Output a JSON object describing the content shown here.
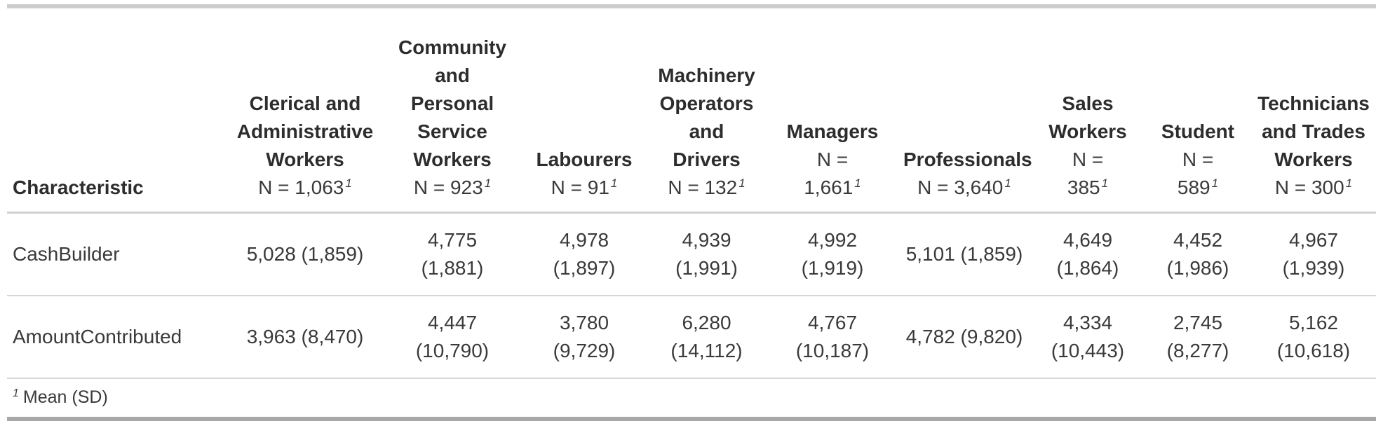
{
  "table": {
    "header": {
      "stub_label": "Characteristic",
      "columns": [
        {
          "label": "Clerical and\nAdministrative\nWorkers",
          "n": "N = 1,063",
          "footnote_mark": "1"
        },
        {
          "label": "Community\nand\nPersonal\nService\nWorkers",
          "n": "N = 923",
          "footnote_mark": "1"
        },
        {
          "label": "Labourers",
          "n": "N = 91",
          "footnote_mark": "1"
        },
        {
          "label": "Machinery\nOperators\nand\nDrivers",
          "n": "N = 132",
          "footnote_mark": "1"
        },
        {
          "label": "Managers",
          "n": "N =\n1,661",
          "footnote_mark": "1"
        },
        {
          "label": "Professionals",
          "n": "N = 3,640",
          "footnote_mark": "1"
        },
        {
          "label": "Sales\nWorkers",
          "n": "N =\n385",
          "footnote_mark": "1"
        },
        {
          "label": "Student",
          "n": "N =\n589",
          "footnote_mark": "1"
        },
        {
          "label": "Technicians\nand Trades\nWorkers",
          "n": "N = 300",
          "footnote_mark": "1"
        }
      ]
    },
    "rows": [
      {
        "label": "CashBuilder",
        "values": [
          "5,028 (1,859)",
          "4,775\n(1,881)",
          "4,978\n(1,897)",
          "4,939\n(1,991)",
          "4,992\n(1,919)",
          "5,101 (1,859)",
          "4,649\n(1,864)",
          "4,452\n(1,986)",
          "4,967\n(1,939)"
        ]
      },
      {
        "label": "AmountContributed",
        "values": [
          "3,963 (8,470)",
          "4,447\n(10,790)",
          "3,780\n(9,729)",
          "6,280\n(14,112)",
          "4,767\n(10,187)",
          "4,782 (9,820)",
          "4,334\n(10,443)",
          "2,745\n(8,277)",
          "5,162\n(10,618)"
        ]
      }
    ],
    "footnote": {
      "mark": "1",
      "text": "Mean (SD)"
    },
    "stats": {
      "group_sizes": {
        "Clerical and Administrative Workers": 1063,
        "Community and Personal Service Workers": 923,
        "Labourers": 91,
        "Machinery Operators and Drivers": 132,
        "Managers": 1661,
        "Professionals": 3640,
        "Sales Workers": 385,
        "Student": 589,
        "Technicians and Trades Workers": 300
      },
      "CashBuilder_mean_sd": [
        [
          5028,
          1859
        ],
        [
          4775,
          1881
        ],
        [
          4978,
          1897
        ],
        [
          4939,
          1991
        ],
        [
          4992,
          1919
        ],
        [
          5101,
          1859
        ],
        [
          4649,
          1864
        ],
        [
          4452,
          1986
        ],
        [
          4967,
          1939
        ]
      ],
      "AmountContributed_mean_sd": [
        [
          3963,
          8470
        ],
        [
          4447,
          10790
        ],
        [
          3780,
          9729
        ],
        [
          6280,
          14112
        ],
        [
          4767,
          10187
        ],
        [
          4782,
          9820
        ],
        [
          4334,
          10443
        ],
        [
          2745,
          8277
        ],
        [
          5162,
          10618
        ]
      ]
    }
  },
  "colors": {
    "top_border": "#cdcdcd",
    "header_rule": "#d0d0d0",
    "row_rule": "#d6d6d6",
    "bottom_border": "#a8a8a8",
    "text": "#3a3a3a",
    "bold_text": "#2d2d2d"
  }
}
